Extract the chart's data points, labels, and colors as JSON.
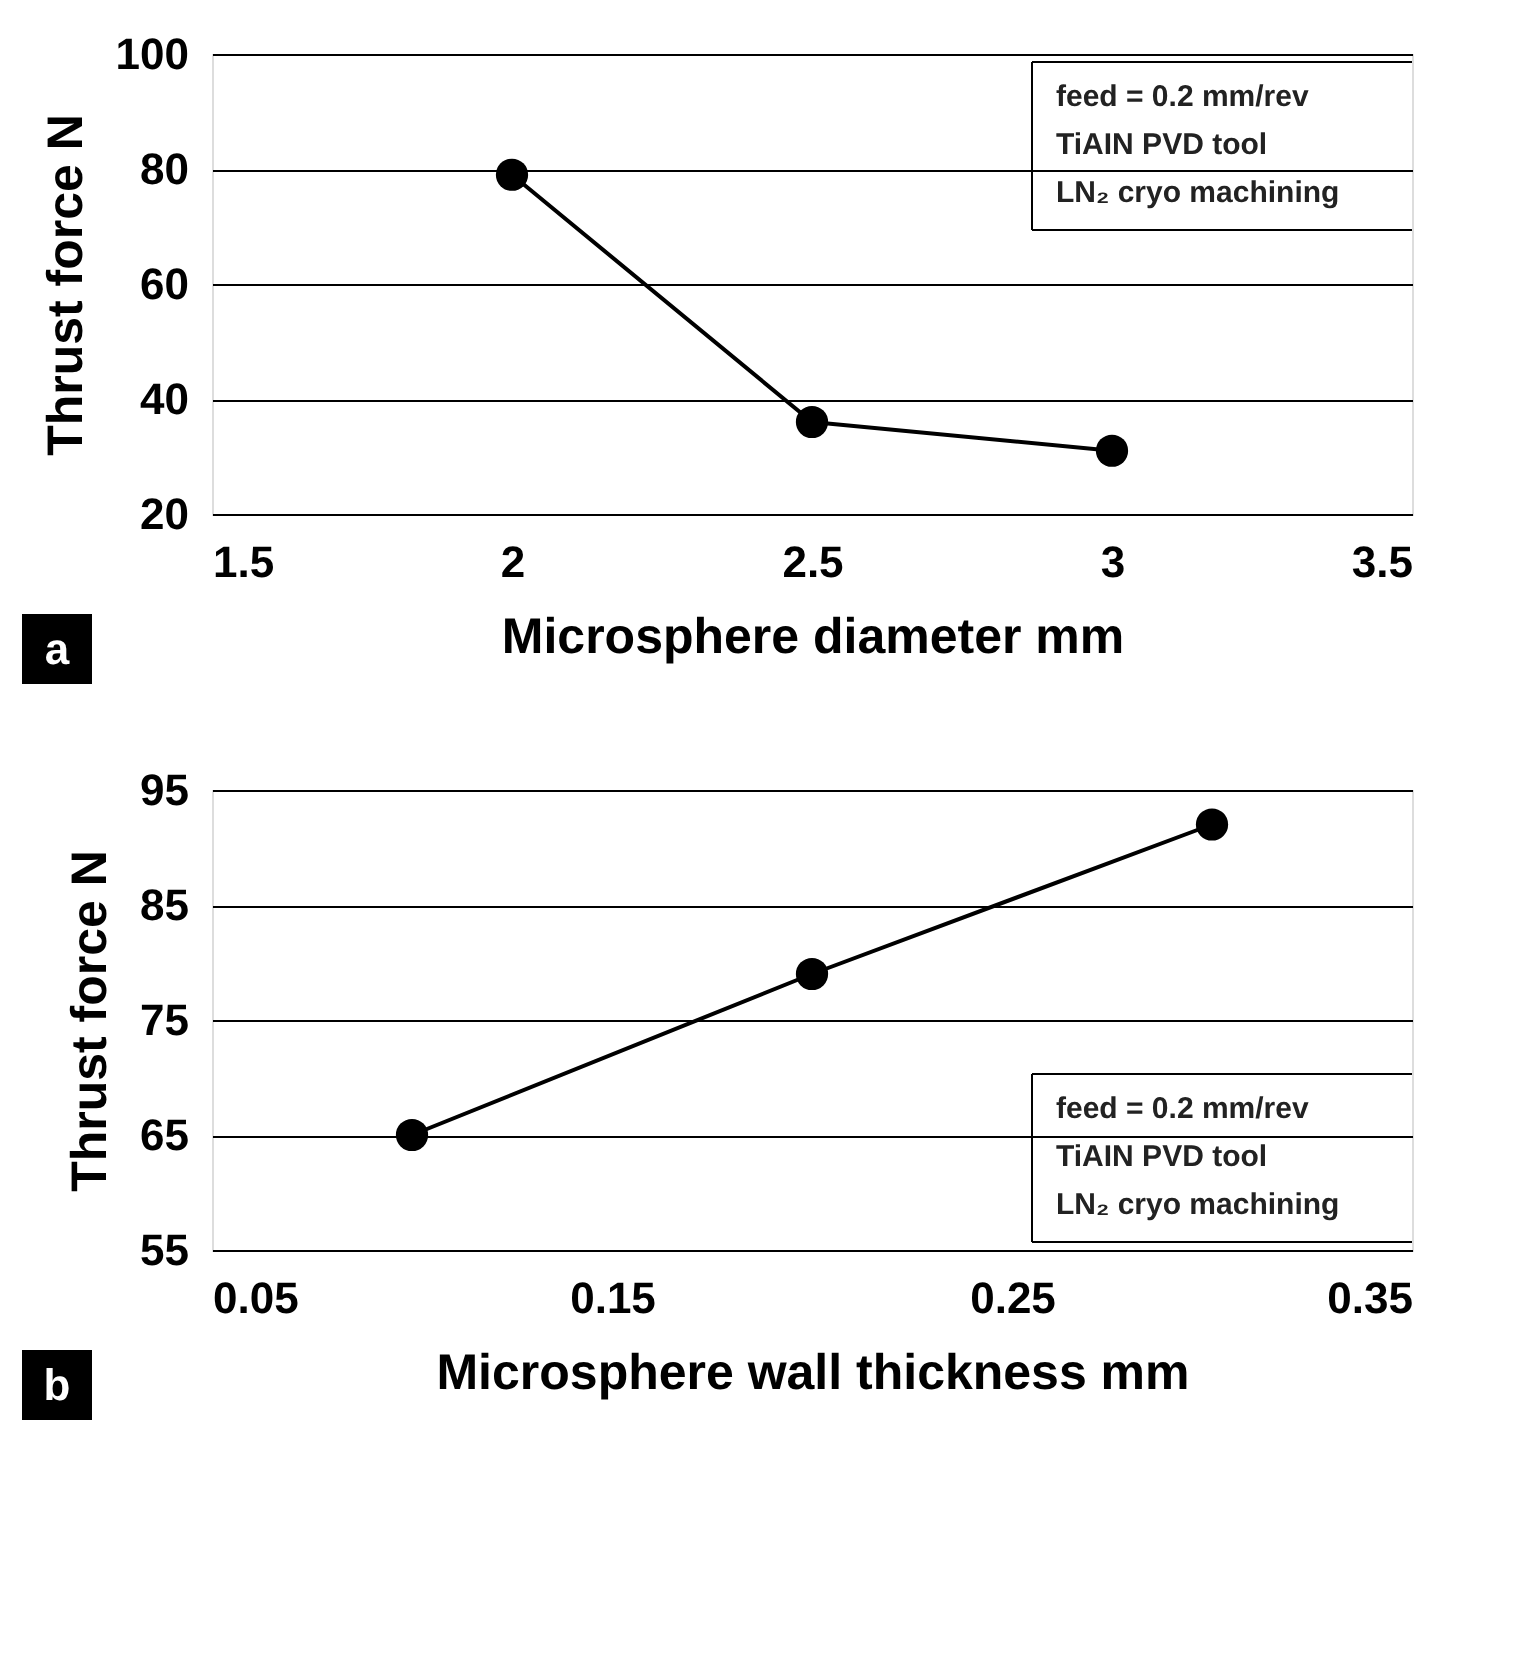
{
  "chart_data": [
    {
      "type": "line",
      "x": [
        2,
        2.5,
        3
      ],
      "values": [
        79,
        36,
        31
      ],
      "color": "#000000",
      "marker": "circle",
      "line_style": "solid",
      "xlabel": "Microsphere diameter mm",
      "ylabel": "Thrust force N",
      "xlim": [
        1.5,
        3.5
      ],
      "xticks": [
        1.5,
        2,
        2.5,
        3,
        3.5
      ],
      "ylim": [
        20,
        100
      ],
      "yticks": [
        20,
        40,
        60,
        80,
        100
      ],
      "grid": "y",
      "annotations": [
        "a",
        "feed = 0.2 mm/rev",
        "TiAIN PVD tool",
        "LN₂ cryo machining"
      ]
    },
    {
      "type": "line",
      "x": [
        0.1,
        0.2,
        0.3
      ],
      "values": [
        65,
        79,
        92
      ],
      "color": "#000000",
      "marker": "circle",
      "line_style": "solid",
      "xlabel": "Microsphere wall thickness mm",
      "ylabel": "Thrust force N",
      "xlim": [
        0.05,
        0.35
      ],
      "xticks": [
        0.05,
        0.15,
        0.25,
        0.35
      ],
      "ylim": [
        55,
        95
      ],
      "yticks": [
        55,
        65,
        75,
        85,
        95
      ],
      "grid": "y",
      "annotations": [
        "b",
        "feed = 0.2 mm/rev",
        "TiAIN PVD tool",
        "LN₂ cryo machining"
      ]
    }
  ]
}
